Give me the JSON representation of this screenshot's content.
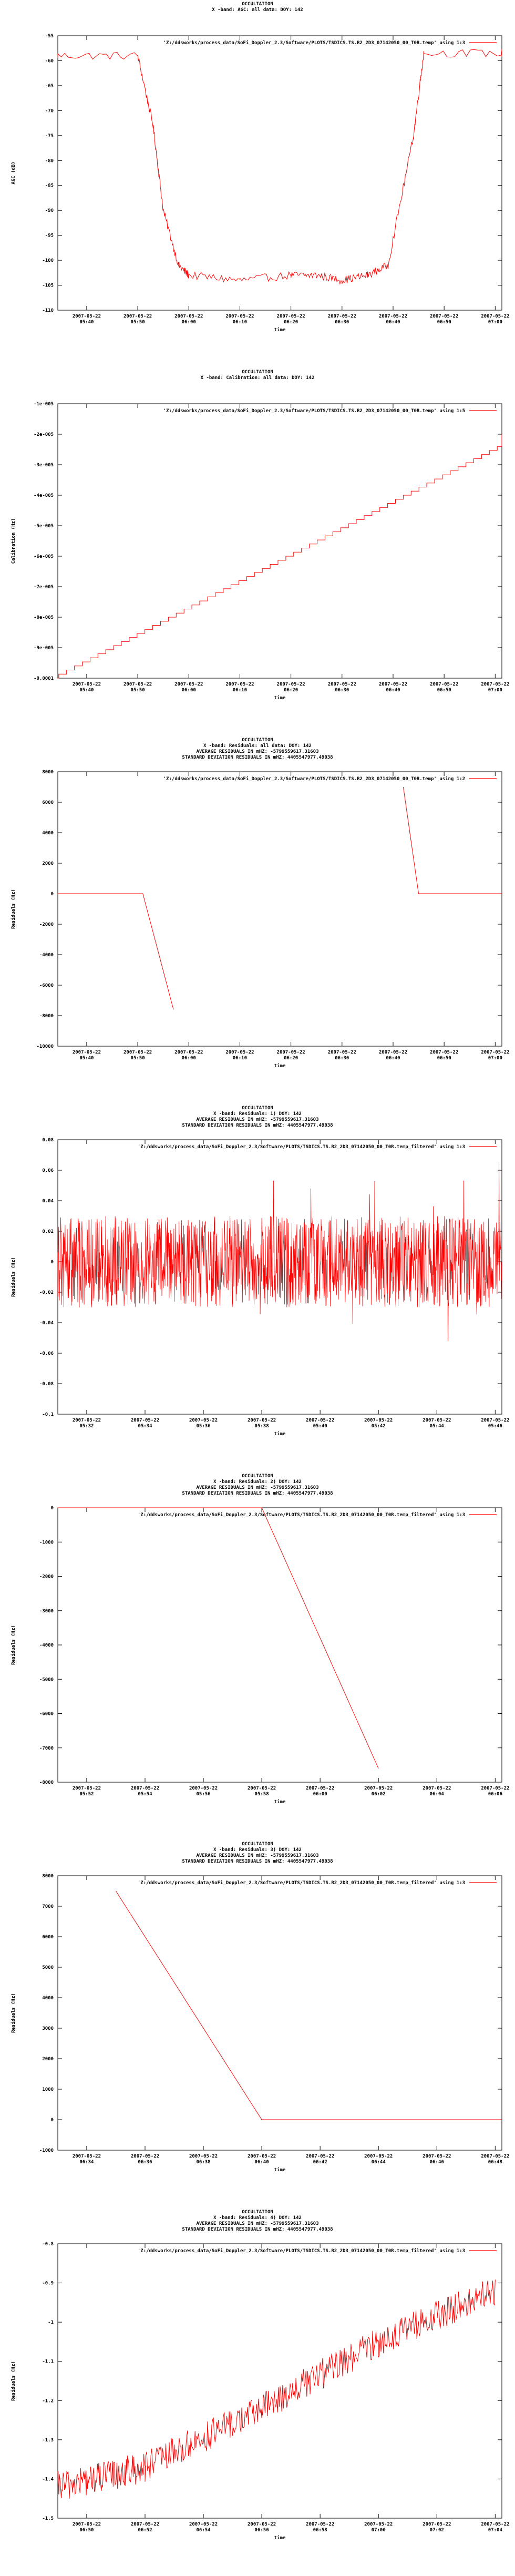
{
  "chart_data": [
    {
      "type": "line",
      "title_lines": [
        "OCCULTATION",
        "X -band: AGC: all data: DOY: 142"
      ],
      "legend": "'Z:/ddsworks/process_data/SoFi_Doppler_2.3/Software/PLOTS/TSDICS.TS.R2_2D3_07142050_00_T0R.temp' using 1:3",
      "ylabel": "AGC (dB)",
      "xlabel": "time",
      "yticks": [
        "-55",
        "-60",
        "-65",
        "-70",
        "-75",
        "-80",
        "-85",
        "-90",
        "-95",
        "-100",
        "-105",
        "-110"
      ],
      "ylim": [
        -110,
        -55
      ],
      "xticks": [
        [
          "2007-05-22",
          "05:40"
        ],
        [
          "2007-05-22",
          "05:50"
        ],
        [
          "2007-05-22",
          "06:00"
        ],
        [
          "2007-05-22",
          "06:10"
        ],
        [
          "2007-05-22",
          "06:20"
        ],
        [
          "2007-05-22",
          "06:30"
        ],
        [
          "2007-05-22",
          "06:40"
        ],
        [
          "2007-05-22",
          "06:50"
        ],
        [
          "2007-05-22",
          "07:00"
        ]
      ],
      "x": [
        "05:33",
        "05:50",
        "05:53",
        "05:55",
        "05:58",
        "06:00",
        "06:10",
        "06:20",
        "06:25",
        "06:30",
        "06:35",
        "06:39",
        "06:44",
        "06:46",
        "07:05"
      ],
      "y": [
        -59,
        -59,
        -73,
        -90,
        -101,
        -103,
        -104,
        -103,
        -103,
        -104,
        -103,
        -101,
        -75,
        -58.5,
        -58.5
      ],
      "color": "#ff0000"
    },
    {
      "type": "line",
      "title_lines": [
        "OCCULTATION",
        "X -band: Calibration: all data: DOY: 142"
      ],
      "legend": "'Z:/ddsworks/process_data/SoFi_Doppler_2.3/Software/PLOTS/TSDICS.TS.R2_2D3_07142050_00_T0R.temp' using 1:5",
      "ylabel": "Calibration (Hz)",
      "xlabel": "time",
      "yticks": [
        "-1e-005",
        "-2e-005",
        "-3e-005",
        "-4e-005",
        "-5e-005",
        "-6e-005",
        "-7e-005",
        "-8e-005",
        "-9e-005",
        "-0.0001"
      ],
      "ylim": [
        -0.0001,
        -1e-05
      ],
      "xticks": [
        [
          "2007-05-22",
          "05:40"
        ],
        [
          "2007-05-22",
          "05:50"
        ],
        [
          "2007-05-22",
          "06:00"
        ],
        [
          "2007-05-22",
          "06:10"
        ],
        [
          "2007-05-22",
          "06:20"
        ],
        [
          "2007-05-22",
          "06:30"
        ],
        [
          "2007-05-22",
          "06:40"
        ],
        [
          "2007-05-22",
          "06:50"
        ],
        [
          "2007-05-22",
          "07:00"
        ]
      ],
      "x": [
        "05:33",
        "07:05"
      ],
      "y": [
        -0.0001,
        -2e-05
      ],
      "color": "#ff0000"
    },
    {
      "type": "line",
      "title_lines": [
        "OCCULTATION",
        "X -band: Residuals: all data: DOY: 142",
        "AVERAGE RESIDUALS IN mHZ: -5799559617.31603",
        "STANDARD DEVIATION RESIDUALS IN mHZ: 4405547977.49038"
      ],
      "legend": "'Z:/ddsworks/process_data/SoFi_Doppler_2.3/Software/PLOTS/TSDICS.TS.R2_2D3_07142050_00_T0R.temp' using 1:2",
      "ylabel": "Residuals (Hz)",
      "xlabel": "time",
      "yticks": [
        "8000",
        "6000",
        "4000",
        "2000",
        "0",
        "-2000",
        "-4000",
        "-6000",
        "-8000",
        "-10000"
      ],
      "ylim": [
        -10000,
        8000
      ],
      "xticks": [
        [
          "2007-05-22",
          "05:40"
        ],
        [
          "2007-05-22",
          "05:50"
        ],
        [
          "2007-05-22",
          "06:00"
        ],
        [
          "2007-05-22",
          "06:10"
        ],
        [
          "2007-05-22",
          "06:20"
        ],
        [
          "2007-05-22",
          "06:30"
        ],
        [
          "2007-05-22",
          "06:40"
        ],
        [
          "2007-05-22",
          "06:50"
        ],
        [
          "2007-05-22",
          "07:00"
        ]
      ],
      "segments": [
        {
          "x": [
            "05:33",
            "05:51",
            "05:57"
          ],
          "y": [
            0,
            0,
            -7600
          ]
        },
        {
          "x": [
            "06:42",
            "06:45",
            "07:05"
          ],
          "y": [
            7000,
            0,
            0
          ]
        }
      ],
      "color": "#ff0000"
    },
    {
      "type": "line",
      "title_lines": [
        "OCCULTATION",
        "X -band: Residuals: 1) DOY: 142",
        "AVERAGE RESIDUALS IN mHZ: -5799559617.31603",
        "STANDARD DEVIATION RESIDUALS IN mHZ: 4405547977.49038"
      ],
      "legend": "'Z:/ddsworks/process_data/SoFi_Doppler_2.3/Software/PLOTS/TSDICS.TS.R2_2D3_07142050_00_T0R.temp_filtered' using 1:3",
      "ylabel": "Residuals (Hz)",
      "xlabel": "time",
      "yticks": [
        "0.08",
        "0.06",
        "0.04",
        "0.02",
        "0",
        "-0.02",
        "-0.04",
        "-0.06",
        "-0.08",
        "-0.1"
      ],
      "ylim": [
        -0.1,
        0.08
      ],
      "xticks": [
        [
          "2007-05-22",
          "05:32"
        ],
        [
          "2007-05-22",
          "05:34"
        ],
        [
          "2007-05-22",
          "05:36"
        ],
        [
          "2007-05-22",
          "05:38"
        ],
        [
          "2007-05-22",
          "05:40"
        ],
        [
          "2007-05-22",
          "05:42"
        ],
        [
          "2007-05-22",
          "05:44"
        ],
        [
          "2007-05-22",
          "05:46"
        ]
      ],
      "noise": {
        "mean": 0.0,
        "amplitude": 0.03
      },
      "color": "#ff0000"
    },
    {
      "type": "line",
      "title_lines": [
        "OCCULTATION",
        "X -band: Residuals: 2) DOY: 142",
        "AVERAGE RESIDUALS IN mHZ: -5799559617.31603",
        "STANDARD DEVIATION RESIDUALS IN mHZ: 4405547977.49038"
      ],
      "legend": "'Z:/ddsworks/process_data/SoFi_Doppler_2.3/Software/PLOTS/TSDICS.TS.R2_2D3_07142050_00_T0R.temp_filtered' using 1:3",
      "ylabel": "Residuals (Hz)",
      "xlabel": "time",
      "yticks": [
        "0",
        "-1000",
        "-2000",
        "-3000",
        "-4000",
        "-5000",
        "-6000",
        "-7000",
        "-8000"
      ],
      "ylim": [
        -8000,
        0
      ],
      "xticks": [
        [
          "2007-05-22",
          "05:52"
        ],
        [
          "2007-05-22",
          "05:54"
        ],
        [
          "2007-05-22",
          "05:56"
        ],
        [
          "2007-05-22",
          "05:58"
        ],
        [
          "2007-05-22",
          "06:00"
        ],
        [
          "2007-05-22",
          "06:02"
        ],
        [
          "2007-05-22",
          "06:04"
        ],
        [
          "2007-05-22",
          "06:06"
        ]
      ],
      "x": [
        "05:50",
        "05:58",
        "06:02"
      ],
      "y": [
        0,
        0,
        -7600
      ],
      "color": "#ff0000"
    },
    {
      "type": "line",
      "title_lines": [
        "OCCULTATION",
        "X -band: Residuals: 3) DOY: 142",
        "AVERAGE RESIDUALS IN mHZ: -5799559617.31603",
        "STANDARD DEVIATION RESIDUALS IN mHZ: 4405547977.49038"
      ],
      "legend": "'Z:/ddsworks/process_data/SoFi_Doppler_2.3/Software/PLOTS/TSDICS.TS.R2_2D3_07142050_00_T0R.temp_filtered' using 1:3",
      "ylabel": "Residuals (Hz)",
      "xlabel": "time",
      "yticks": [
        "8000",
        "7000",
        "6000",
        "5000",
        "4000",
        "3000",
        "2000",
        "1000",
        "0",
        "-1000"
      ],
      "ylim": [
        -1000,
        8000
      ],
      "xticks": [
        [
          "2007-05-22",
          "06:34"
        ],
        [
          "2007-05-22",
          "06:36"
        ],
        [
          "2007-05-22",
          "06:38"
        ],
        [
          "2007-05-22",
          "06:40"
        ],
        [
          "2007-05-22",
          "06:42"
        ],
        [
          "2007-05-22",
          "06:44"
        ],
        [
          "2007-05-22",
          "06:46"
        ],
        [
          "2007-05-22",
          "06:48"
        ]
      ],
      "x": [
        "06:35",
        "06:40",
        "07:06"
      ],
      "y": [
        7500,
        0,
        0
      ],
      "color": "#ff0000"
    },
    {
      "type": "line",
      "title_lines": [
        "OCCULTATION",
        "X -band: Residuals: 4) DOY: 142",
        "AVERAGE RESIDUALS IN mHZ: -5799559617.31603",
        "STANDARD DEVIATION RESIDUALS IN mHZ: 4405547977.49038"
      ],
      "legend": "'Z:/ddsworks/process_data/SoFi_Doppler_2.3/Software/PLOTS/TSDICS.TS.R2_2D3_07142050_00_T0R.temp_filtered' using 1:3",
      "ylabel": "Residuals (Hz)",
      "xlabel": "time",
      "yticks": [
        "-0.8",
        "-0.9",
        "-1",
        "-1.1",
        "-1.2",
        "-1.3",
        "-1.4",
        "-1.5"
      ],
      "ylim": [
        -1.5,
        -0.8
      ],
      "xticks": [
        [
          "2007-05-22",
          "06:50"
        ],
        [
          "2007-05-22",
          "06:52"
        ],
        [
          "2007-05-22",
          "06:54"
        ],
        [
          "2007-05-22",
          "06:56"
        ],
        [
          "2007-05-22",
          "06:58"
        ],
        [
          "2007-05-22",
          "07:00"
        ],
        [
          "2007-05-22",
          "07:02"
        ],
        [
          "2007-05-22",
          "07:04"
        ]
      ],
      "x": [
        "06:49",
        "06:52",
        "06:56",
        "07:00",
        "07:04"
      ],
      "y": [
        -1.42,
        -1.37,
        -1.22,
        -1.05,
        -0.92
      ],
      "noise": {
        "amplitude": 0.04
      },
      "color": "#ff0000"
    }
  ]
}
